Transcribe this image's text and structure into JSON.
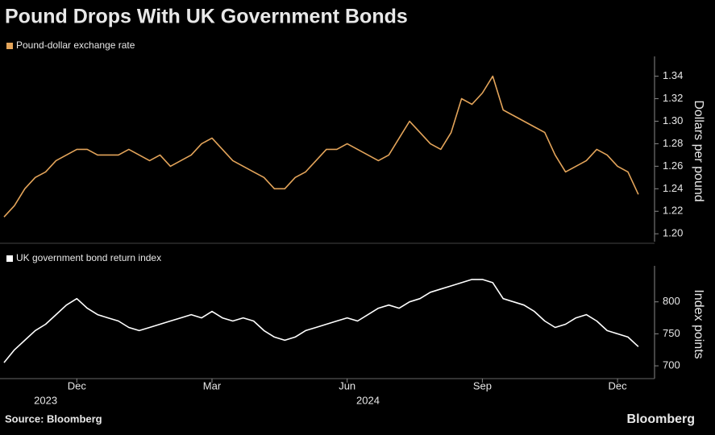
{
  "title": "Pound Drops With UK Government Bonds",
  "source": "Source: Bloomberg",
  "brand": "Bloomberg",
  "chart_data": [
    {
      "type": "line",
      "ylabel": "Dollars per pound",
      "ylim": [
        1.193,
        1.354
      ],
      "yticks": [
        {
          "value": 1.2,
          "label": "1.20"
        },
        {
          "value": 1.22,
          "label": "1.22"
        },
        {
          "value": 1.24,
          "label": "1.24"
        },
        {
          "value": 1.26,
          "label": "1.26"
        },
        {
          "value": 1.28,
          "label": "1.28"
        },
        {
          "value": 1.3,
          "label": "1.30"
        },
        {
          "value": 1.32,
          "label": "1.32"
        },
        {
          "value": 1.34,
          "label": "1.34"
        }
      ],
      "series": [
        {
          "name": "Pound-dollar exchange rate",
          "color": "#e3a45a",
          "values": [
            1.215,
            1.225,
            1.24,
            1.25,
            1.255,
            1.265,
            1.27,
            1.275,
            1.275,
            1.27,
            1.27,
            1.27,
            1.275,
            1.27,
            1.265,
            1.27,
            1.26,
            1.265,
            1.27,
            1.28,
            1.285,
            1.275,
            1.265,
            1.26,
            1.255,
            1.25,
            1.24,
            1.24,
            1.25,
            1.255,
            1.265,
            1.275,
            1.275,
            1.28,
            1.275,
            1.27,
            1.265,
            1.27,
            1.285,
            1.3,
            1.29,
            1.28,
            1.275,
            1.29,
            1.32,
            1.315,
            1.325,
            1.34,
            1.31,
            1.305,
            1.3,
            1.295,
            1.29,
            1.27,
            1.255,
            1.26,
            1.265,
            1.275,
            1.27,
            1.26,
            1.255,
            1.235
          ]
        }
      ]
    },
    {
      "type": "line",
      "ylabel": "Index points",
      "ylim": [
        680,
        850
      ],
      "yticks": [
        700,
        750,
        800
      ],
      "categories": [
        null,
        null,
        null,
        null,
        null,
        null,
        null,
        "Dec",
        null,
        null,
        null,
        null,
        null,
        null,
        null,
        null,
        null,
        null,
        null,
        null,
        "Mar",
        null,
        null,
        null,
        null,
        null,
        null,
        null,
        null,
        null,
        null,
        null,
        null,
        "Jun",
        null,
        null,
        null,
        null,
        null,
        null,
        null,
        null,
        null,
        null,
        null,
        null,
        "Sep",
        null,
        null,
        null,
        null,
        null,
        null,
        null,
        null,
        null,
        null,
        null,
        null,
        "Dec",
        null,
        null
      ],
      "category_years": [
        null,
        null,
        null,
        null,
        "2023",
        null,
        null,
        null,
        null,
        null,
        null,
        null,
        null,
        null,
        null,
        null,
        null,
        null,
        null,
        null,
        null,
        null,
        null,
        null,
        null,
        null,
        null,
        null,
        null,
        null,
        null,
        null,
        null,
        null,
        null,
        "2024",
        null,
        null,
        null,
        null,
        null,
        null,
        null,
        null,
        null,
        null,
        null,
        null,
        null,
        null,
        null,
        null,
        null,
        null,
        null,
        null,
        null,
        null,
        null,
        null,
        null,
        null
      ],
      "series": [
        {
          "name": "UK government bond return index",
          "color": "#ffffff",
          "values": [
            705,
            725,
            740,
            755,
            765,
            780,
            795,
            805,
            790,
            780,
            775,
            770,
            760,
            755,
            760,
            765,
            770,
            775,
            780,
            775,
            785,
            775,
            770,
            775,
            770,
            755,
            745,
            740,
            745,
            755,
            760,
            765,
            770,
            775,
            770,
            780,
            790,
            795,
            790,
            800,
            805,
            815,
            820,
            825,
            830,
            835,
            835,
            830,
            805,
            800,
            795,
            785,
            770,
            760,
            765,
            775,
            780,
            770,
            755,
            750,
            745,
            730
          ]
        }
      ]
    }
  ]
}
